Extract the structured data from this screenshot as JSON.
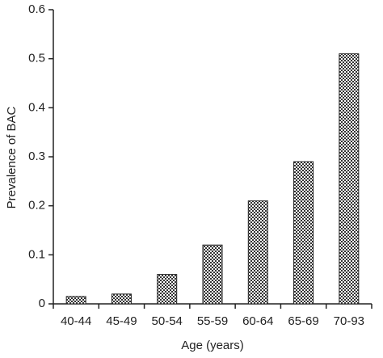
{
  "chart_data": {
    "type": "bar",
    "x_label": "Age (years)",
    "y_label": "Prevalence of BAC",
    "categories": [
      "40-44",
      "45-49",
      "50-54",
      "55-59",
      "60-64",
      "65-69",
      "70-93"
    ],
    "values": [
      0.015,
      0.02,
      0.06,
      0.12,
      0.21,
      0.29,
      0.51
    ],
    "ylim": [
      0,
      0.6
    ],
    "yticks": [
      0,
      0.1,
      0.2,
      0.3,
      0.4,
      0.5,
      0.6
    ]
  }
}
